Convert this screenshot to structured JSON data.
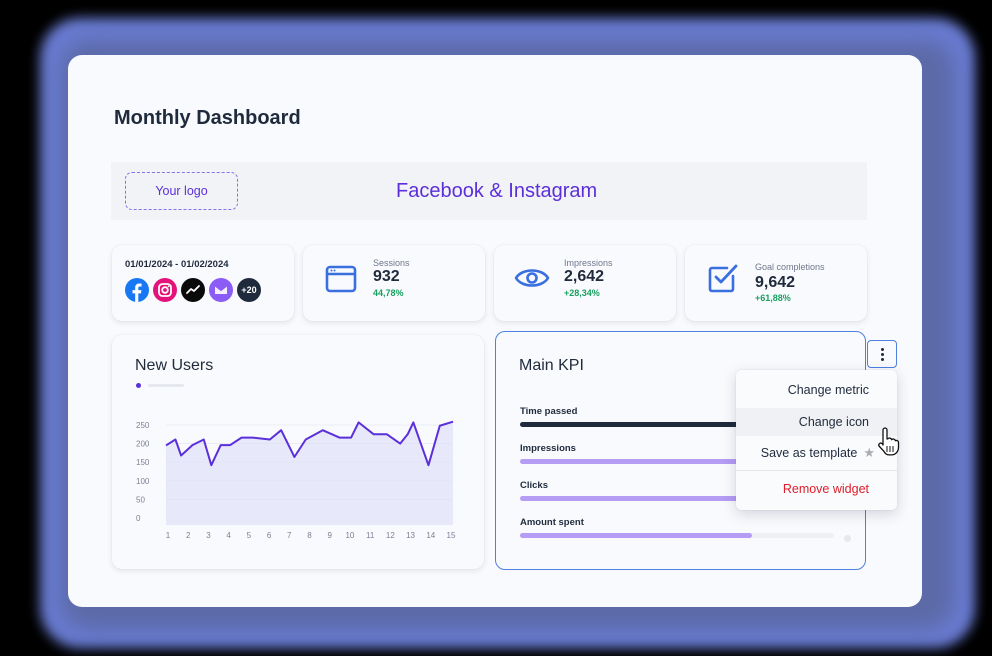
{
  "page": {
    "title": "Monthly Dashboard"
  },
  "banner": {
    "logo_placeholder": "Your logo",
    "title": "Facebook & Instagram"
  },
  "filters": {
    "date_range": "01/01/2024 - 01/02/2024",
    "sources": [
      {
        "name": "facebook-icon",
        "color": "#1877f2"
      },
      {
        "name": "instagram-icon",
        "color": "#e4137a"
      },
      {
        "name": "analytics-icon",
        "color": "#0a0a0a"
      },
      {
        "name": "email-icon",
        "color": "#8b5cf6"
      }
    ],
    "more_sources_label": "+20",
    "more_sources_color": "#1f2b3c"
  },
  "stats": [
    {
      "label": "Sessions",
      "value": "932",
      "delta": "44,78%",
      "icon": "browser-window-icon"
    },
    {
      "label": "Impressions",
      "value": "2,642",
      "delta": "+28,34%",
      "icon": "eye-icon"
    },
    {
      "label": "Goal completions",
      "value": "9,642",
      "delta": "+61,88%",
      "icon": "checkbox-icon"
    }
  ],
  "colors": {
    "accent": "#5b2fd9",
    "icon_blue": "#3a6fe0",
    "positive": "#18a060",
    "danger": "#e01d2a",
    "kpi_dark": "#1f2b3c",
    "kpi_purple": "#b59cf5"
  },
  "new_users": {
    "title": "New Users"
  },
  "chart_data": {
    "type": "area",
    "title": "New Users",
    "xlabel": "",
    "ylabel": "",
    "x_ticks": [
      "1",
      "2",
      "3",
      "4",
      "5",
      "6",
      "7",
      "8",
      "9",
      "10",
      "11",
      "12",
      "13",
      "14",
      "15"
    ],
    "y_ticks": [
      0,
      50,
      100,
      150,
      200,
      250
    ],
    "ylim": [
      0,
      250
    ],
    "x": [
      1,
      1.5,
      1.8,
      2.4,
      3.0,
      3.4,
      3.9,
      4.4,
      5.0,
      5.6,
      6.5,
      7.1,
      7.8,
      8.4,
      9.3,
      10.2,
      10.8,
      11.2,
      12.0,
      12.7,
      13.4,
      13.8,
      14.1,
      14.9,
      15.5,
      16.2
    ],
    "values": [
      195,
      211,
      168,
      196,
      211,
      142,
      196,
      196,
      216,
      216,
      211,
      236,
      164,
      211,
      236,
      216,
      216,
      257,
      225,
      225,
      200,
      225,
      257,
      142,
      248,
      259
    ],
    "legend": [
      {
        "name": "",
        "color": "#5b2fd9"
      }
    ],
    "grid": true,
    "fill_color": "#e7e9fa",
    "line_color": "#5b2fd9"
  },
  "main_kpi": {
    "title": "Main KPI",
    "rows": [
      {
        "label": "Time passed",
        "percent": 100,
        "color": "#1f2b3c"
      },
      {
        "label": "Impressions",
        "percent": 100,
        "color": "#b59cf5"
      },
      {
        "label": "Clicks",
        "percent": 100,
        "color": "#b59cf5"
      },
      {
        "label": "Amount spent",
        "percent": 74,
        "color": "#b59cf5"
      }
    ]
  },
  "context_menu": {
    "items": [
      {
        "label": "Change metric"
      },
      {
        "label": "Change icon"
      },
      {
        "label": "Save as template"
      },
      {
        "label": "Remove widget"
      }
    ],
    "star_glyph": "★"
  }
}
